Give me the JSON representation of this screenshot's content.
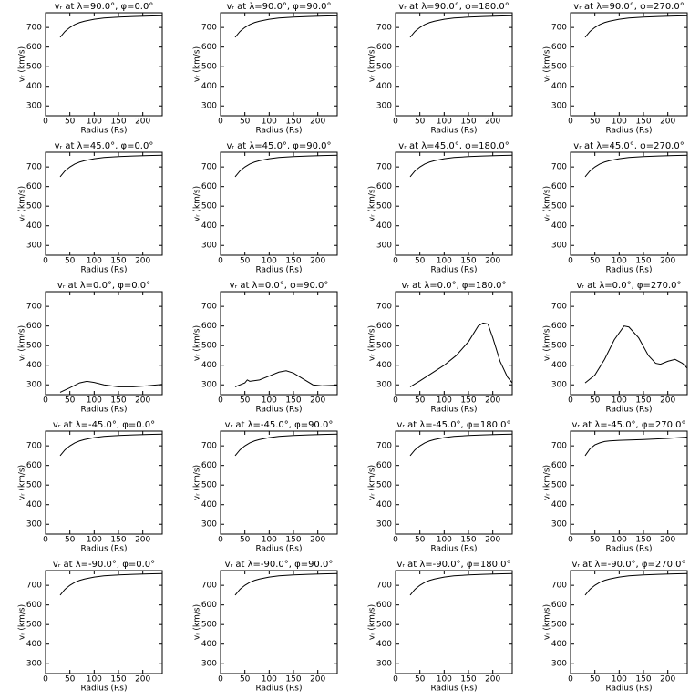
{
  "chart_data": [
    {
      "type": "line",
      "title": "vᵣ at λ=90.0°, φ=0.0°",
      "xlabel": "Radius (Rs)",
      "ylabel": "vᵣ (km/s)",
      "x": [
        30,
        40,
        50,
        60,
        70,
        80,
        100,
        120,
        150,
        180,
        210,
        240
      ],
      "values": [
        650,
        680,
        700,
        715,
        725,
        732,
        742,
        748,
        753,
        756,
        758,
        760
      ],
      "xlim": [
        0,
        240
      ],
      "ylim": [
        250,
        775
      ],
      "xticks": [
        0,
        50,
        100,
        150,
        200
      ],
      "yticks": [
        300,
        400,
        500,
        600,
        700
      ],
      "color": "#000000"
    },
    {
      "type": "line",
      "title": "vᵣ at λ=90.0°, φ=90.0°",
      "xlabel": "Radius (Rs)",
      "ylabel": "vᵣ (km/s)",
      "x": [
        30,
        40,
        50,
        60,
        70,
        80,
        100,
        120,
        150,
        180,
        210,
        240
      ],
      "values": [
        650,
        680,
        700,
        715,
        725,
        732,
        742,
        748,
        753,
        756,
        758,
        760
      ],
      "xlim": [
        0,
        240
      ],
      "ylim": [
        250,
        775
      ],
      "xticks": [
        0,
        50,
        100,
        150,
        200
      ],
      "yticks": [
        300,
        400,
        500,
        600,
        700
      ],
      "color": "#000000"
    },
    {
      "type": "line",
      "title": "vᵣ at λ=90.0°, φ=180.0°",
      "xlabel": "Radius (Rs)",
      "ylabel": "vᵣ (km/s)",
      "x": [
        30,
        40,
        50,
        60,
        70,
        80,
        100,
        120,
        150,
        180,
        210,
        240
      ],
      "values": [
        650,
        680,
        700,
        715,
        725,
        732,
        742,
        748,
        753,
        756,
        758,
        760
      ],
      "xlim": [
        0,
        240
      ],
      "ylim": [
        250,
        775
      ],
      "xticks": [
        0,
        50,
        100,
        150,
        200
      ],
      "yticks": [
        300,
        400,
        500,
        600,
        700
      ],
      "color": "#000000"
    },
    {
      "type": "line",
      "title": "vᵣ at λ=90.0°, φ=270.0°",
      "xlabel": "Radius (Rs)",
      "ylabel": "vᵣ (km/s)",
      "x": [
        30,
        40,
        50,
        60,
        70,
        80,
        100,
        120,
        150,
        180,
        210,
        240
      ],
      "values": [
        650,
        680,
        700,
        715,
        725,
        732,
        742,
        748,
        753,
        756,
        758,
        760
      ],
      "xlim": [
        0,
        240
      ],
      "ylim": [
        250,
        775
      ],
      "xticks": [
        0,
        50,
        100,
        150,
        200
      ],
      "yticks": [
        300,
        400,
        500,
        600,
        700
      ],
      "color": "#000000"
    },
    {
      "type": "line",
      "title": "vᵣ at λ=45.0°, φ=0.0°",
      "xlabel": "Radius (Rs)",
      "ylabel": "vᵣ (km/s)",
      "x": [
        30,
        40,
        50,
        60,
        70,
        80,
        100,
        120,
        150,
        180,
        210,
        240
      ],
      "values": [
        650,
        680,
        700,
        715,
        725,
        732,
        742,
        748,
        753,
        756,
        758,
        760
      ],
      "xlim": [
        0,
        240
      ],
      "ylim": [
        250,
        775
      ],
      "xticks": [
        0,
        50,
        100,
        150,
        200
      ],
      "yticks": [
        300,
        400,
        500,
        600,
        700
      ],
      "color": "#000000"
    },
    {
      "type": "line",
      "title": "vᵣ at λ=45.0°, φ=90.0°",
      "xlabel": "Radius (Rs)",
      "ylabel": "vᵣ (km/s)",
      "x": [
        30,
        40,
        50,
        60,
        70,
        80,
        100,
        120,
        150,
        180,
        210,
        240
      ],
      "values": [
        650,
        680,
        700,
        715,
        725,
        732,
        742,
        748,
        753,
        756,
        758,
        760
      ],
      "xlim": [
        0,
        240
      ],
      "ylim": [
        250,
        775
      ],
      "xticks": [
        0,
        50,
        100,
        150,
        200
      ],
      "yticks": [
        300,
        400,
        500,
        600,
        700
      ],
      "color": "#000000"
    },
    {
      "type": "line",
      "title": "vᵣ at λ=45.0°, φ=180.0°",
      "xlabel": "Radius (Rs)",
      "ylabel": "vᵣ (km/s)",
      "x": [
        30,
        40,
        50,
        60,
        70,
        80,
        100,
        120,
        150,
        180,
        210,
        240
      ],
      "values": [
        650,
        680,
        700,
        715,
        725,
        732,
        742,
        748,
        753,
        756,
        758,
        760
      ],
      "xlim": [
        0,
        240
      ],
      "ylim": [
        250,
        775
      ],
      "xticks": [
        0,
        50,
        100,
        150,
        200
      ],
      "yticks": [
        300,
        400,
        500,
        600,
        700
      ],
      "color": "#000000"
    },
    {
      "type": "line",
      "title": "vᵣ at λ=45.0°, φ=270.0°",
      "xlabel": "Radius (Rs)",
      "ylabel": "vᵣ (km/s)",
      "x": [
        30,
        40,
        50,
        60,
        70,
        80,
        100,
        120,
        150,
        180,
        210,
        240
      ],
      "values": [
        650,
        680,
        700,
        715,
        725,
        732,
        742,
        748,
        753,
        756,
        758,
        760
      ],
      "xlim": [
        0,
        240
      ],
      "ylim": [
        250,
        775
      ],
      "xticks": [
        0,
        50,
        100,
        150,
        200
      ],
      "yticks": [
        300,
        400,
        500,
        600,
        700
      ],
      "color": "#000000"
    },
    {
      "type": "line",
      "title": "vᵣ at λ=0.0°, φ=0.0°",
      "xlabel": "Radius (Rs)",
      "ylabel": "vᵣ (km/s)",
      "x": [
        30,
        50,
        70,
        85,
        100,
        120,
        150,
        180,
        210,
        240
      ],
      "values": [
        262,
        285,
        310,
        318,
        312,
        300,
        290,
        290,
        295,
        302
      ],
      "xlim": [
        0,
        240
      ],
      "ylim": [
        250,
        775
      ],
      "xticks": [
        0,
        50,
        100,
        150,
        200
      ],
      "yticks": [
        300,
        400,
        500,
        600,
        700
      ],
      "color": "#000000"
    },
    {
      "type": "line",
      "title": "vᵣ at λ=0.0°, φ=90.0°",
      "xlabel": "Radius (Rs)",
      "ylabel": "vᵣ (km/s)",
      "x": [
        30,
        50,
        55,
        60,
        80,
        100,
        120,
        135,
        150,
        170,
        190,
        210,
        240
      ],
      "values": [
        290,
        310,
        325,
        318,
        325,
        345,
        365,
        372,
        360,
        330,
        300,
        295,
        298
      ],
      "xlim": [
        0,
        240
      ],
      "ylim": [
        250,
        775
      ],
      "xticks": [
        0,
        50,
        100,
        150,
        200
      ],
      "yticks": [
        300,
        400,
        500,
        600,
        700
      ],
      "color": "#000000"
    },
    {
      "type": "line",
      "title": "vᵣ at λ=0.0°, φ=180.0°",
      "xlabel": "Radius (Rs)",
      "ylabel": "vᵣ (km/s)",
      "x": [
        30,
        50,
        75,
        100,
        125,
        150,
        170,
        180,
        190,
        200,
        215,
        230,
        240
      ],
      "values": [
        290,
        320,
        360,
        400,
        450,
        520,
        600,
        615,
        610,
        540,
        420,
        340,
        310
      ],
      "xlim": [
        0,
        240
      ],
      "ylim": [
        250,
        775
      ],
      "xticks": [
        0,
        50,
        100,
        150,
        200
      ],
      "yticks": [
        300,
        400,
        500,
        600,
        700
      ],
      "color": "#000000"
    },
    {
      "type": "line",
      "title": "vᵣ at λ=0.0°, φ=270.0°",
      "xlabel": "Radius (Rs)",
      "ylabel": "vᵣ (km/s)",
      "x": [
        30,
        50,
        70,
        90,
        110,
        120,
        140,
        160,
        175,
        185,
        200,
        215,
        230,
        240
      ],
      "values": [
        310,
        350,
        430,
        530,
        600,
        595,
        540,
        450,
        410,
        405,
        420,
        430,
        410,
        385
      ],
      "xlim": [
        0,
        240
      ],
      "ylim": [
        250,
        775
      ],
      "xticks": [
        0,
        50,
        100,
        150,
        200
      ],
      "yticks": [
        300,
        400,
        500,
        600,
        700
      ],
      "color": "#000000"
    },
    {
      "type": "line",
      "title": "vᵣ at λ=-45.0°, φ=0.0°",
      "xlabel": "Radius (Rs)",
      "ylabel": "vᵣ (km/s)",
      "x": [
        30,
        40,
        50,
        60,
        70,
        80,
        100,
        120,
        150,
        180,
        210,
        240
      ],
      "values": [
        650,
        680,
        700,
        715,
        725,
        732,
        742,
        748,
        753,
        756,
        758,
        760
      ],
      "xlim": [
        0,
        240
      ],
      "ylim": [
        250,
        775
      ],
      "xticks": [
        0,
        50,
        100,
        150,
        200
      ],
      "yticks": [
        300,
        400,
        500,
        600,
        700
      ],
      "color": "#000000"
    },
    {
      "type": "line",
      "title": "vᵣ at λ=-45.0°, φ=90.0°",
      "xlabel": "Radius (Rs)",
      "ylabel": "vᵣ (km/s)",
      "x": [
        30,
        40,
        50,
        60,
        70,
        80,
        100,
        120,
        150,
        180,
        210,
        240
      ],
      "values": [
        650,
        680,
        700,
        715,
        725,
        732,
        742,
        748,
        753,
        756,
        758,
        760
      ],
      "xlim": [
        0,
        240
      ],
      "ylim": [
        250,
        775
      ],
      "xticks": [
        0,
        50,
        100,
        150,
        200
      ],
      "yticks": [
        300,
        400,
        500,
        600,
        700
      ],
      "color": "#000000"
    },
    {
      "type": "line",
      "title": "vᵣ at λ=-45.0°, φ=180.0°",
      "xlabel": "Radius (Rs)",
      "ylabel": "vᵣ (km/s)",
      "x": [
        30,
        40,
        50,
        60,
        70,
        80,
        100,
        120,
        150,
        180,
        210,
        240
      ],
      "values": [
        650,
        680,
        700,
        715,
        725,
        732,
        742,
        748,
        753,
        756,
        758,
        760
      ],
      "xlim": [
        0,
        240
      ],
      "ylim": [
        250,
        775
      ],
      "xticks": [
        0,
        50,
        100,
        150,
        200
      ],
      "yticks": [
        300,
        400,
        500,
        600,
        700
      ],
      "color": "#000000"
    },
    {
      "type": "line",
      "title": "vᵣ at λ=-45.0°, φ=270.0°",
      "xlabel": "Radius (Rs)",
      "ylabel": "vᵣ (km/s)",
      "x": [
        30,
        40,
        50,
        60,
        70,
        80,
        100,
        150,
        200,
        240
      ],
      "values": [
        650,
        685,
        705,
        715,
        722,
        725,
        728,
        732,
        738,
        745
      ],
      "xlim": [
        0,
        240
      ],
      "ylim": [
        250,
        775
      ],
      "xticks": [
        0,
        50,
        100,
        150,
        200
      ],
      "yticks": [
        300,
        400,
        500,
        600,
        700
      ],
      "color": "#000000"
    },
    {
      "type": "line",
      "title": "vᵣ at λ=-90.0°, φ=0.0°",
      "xlabel": "Radius (Rs)",
      "ylabel": "vᵣ (km/s)",
      "x": [
        30,
        40,
        50,
        60,
        70,
        80,
        100,
        120,
        150,
        180,
        210,
        240
      ],
      "values": [
        650,
        680,
        700,
        715,
        725,
        732,
        742,
        748,
        753,
        756,
        758,
        760
      ],
      "xlim": [
        0,
        240
      ],
      "ylim": [
        250,
        775
      ],
      "xticks": [
        0,
        50,
        100,
        150,
        200
      ],
      "yticks": [
        300,
        400,
        500,
        600,
        700
      ],
      "color": "#000000"
    },
    {
      "type": "line",
      "title": "vᵣ at λ=-90.0°, φ=90.0°",
      "xlabel": "Radius (Rs)",
      "ylabel": "vᵣ (km/s)",
      "x": [
        30,
        40,
        50,
        60,
        70,
        80,
        100,
        120,
        150,
        180,
        210,
        240
      ],
      "values": [
        650,
        680,
        700,
        715,
        725,
        732,
        742,
        748,
        753,
        756,
        758,
        760
      ],
      "xlim": [
        0,
        240
      ],
      "ylim": [
        250,
        775
      ],
      "xticks": [
        0,
        50,
        100,
        150,
        200
      ],
      "yticks": [
        300,
        400,
        500,
        600,
        700
      ],
      "color": "#000000"
    },
    {
      "type": "line",
      "title": "vᵣ at λ=-90.0°, φ=180.0°",
      "xlabel": "Radius (Rs)",
      "ylabel": "vᵣ (km/s)",
      "x": [
        30,
        40,
        50,
        60,
        70,
        80,
        100,
        120,
        150,
        180,
        210,
        240
      ],
      "values": [
        650,
        680,
        700,
        715,
        725,
        732,
        742,
        748,
        753,
        756,
        758,
        760
      ],
      "xlim": [
        0,
        240
      ],
      "ylim": [
        250,
        775
      ],
      "xticks": [
        0,
        50,
        100,
        150,
        200
      ],
      "yticks": [
        300,
        400,
        500,
        600,
        700
      ],
      "color": "#000000"
    },
    {
      "type": "line",
      "title": "vᵣ at λ=-90.0°, φ=270.0°",
      "xlabel": "Radius (Rs)",
      "ylabel": "vᵣ (km/s)",
      "x": [
        30,
        40,
        50,
        60,
        70,
        80,
        100,
        120,
        150,
        180,
        210,
        240
      ],
      "values": [
        650,
        680,
        700,
        715,
        725,
        732,
        742,
        748,
        753,
        756,
        758,
        760
      ],
      "xlim": [
        0,
        240
      ],
      "ylim": [
        250,
        775
      ],
      "xticks": [
        0,
        50,
        100,
        150,
        200
      ],
      "yticks": [
        300,
        400,
        500,
        600,
        700
      ],
      "color": "#000000"
    }
  ]
}
